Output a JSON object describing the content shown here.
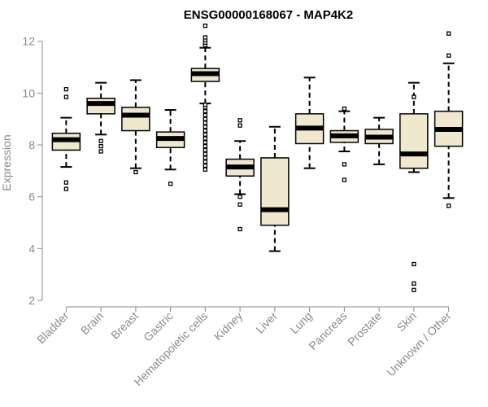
{
  "chart_data": {
    "type": "box",
    "title": "ENSG00000168067 - MAP4K2",
    "xlabel": "",
    "ylabel": "Expression",
    "ylim": [
      2,
      12.4
    ],
    "yticks": [
      2,
      4,
      6,
      8,
      10,
      12
    ],
    "categories": [
      "Bladder",
      "Brain",
      "Breast",
      "Gastric",
      "Hematopoietic cells",
      "Kidney",
      "Liver",
      "Lung",
      "Pancreas",
      "Prostate",
      "Skin",
      "Unknown / Other"
    ],
    "boxes": [
      {
        "category": "Bladder",
        "whisker_low": 7.15,
        "q1": 7.8,
        "median": 8.2,
        "q3": 8.45,
        "whisker_high": 9.05,
        "outliers": [
          6.3,
          6.55,
          9.85,
          10.15
        ]
      },
      {
        "category": "Brain",
        "whisker_low": 8.4,
        "q1": 9.2,
        "median": 9.6,
        "q3": 9.8,
        "whisker_high": 10.4,
        "outliers": [
          7.75,
          7.95,
          8.15
        ]
      },
      {
        "category": "Breast",
        "whisker_low": 7.1,
        "q1": 8.55,
        "median": 9.15,
        "q3": 9.45,
        "whisker_high": 10.5,
        "outliers": [
          6.95
        ]
      },
      {
        "category": "Gastric",
        "whisker_low": 7.05,
        "q1": 7.9,
        "median": 8.25,
        "q3": 8.5,
        "whisker_high": 9.35,
        "outliers": [
          6.5
        ]
      },
      {
        "category": "Hematopoietic cells",
        "whisker_low": 9.6,
        "q1": 10.45,
        "median": 10.75,
        "q3": 10.95,
        "whisker_high": 11.75,
        "outliers": [
          7.05,
          7.2,
          7.35,
          7.5,
          7.65,
          7.8,
          7.95,
          8.1,
          8.25,
          8.4,
          8.55,
          8.7,
          8.85,
          9.0,
          9.15,
          9.3,
          9.45,
          9.55,
          11.85,
          11.95,
          12.05,
          12.15,
          12.6
        ]
      },
      {
        "category": "Kidney",
        "whisker_low": 6.1,
        "q1": 6.8,
        "median": 7.15,
        "q3": 7.45,
        "whisker_high": 8.15,
        "outliers": [
          4.75,
          5.7,
          6.0,
          8.75,
          8.95
        ]
      },
      {
        "category": "Liver",
        "whisker_low": 3.9,
        "q1": 4.9,
        "median": 5.5,
        "q3": 7.5,
        "whisker_high": 8.7,
        "outliers": []
      },
      {
        "category": "Lung",
        "whisker_low": 7.1,
        "q1": 8.05,
        "median": 8.65,
        "q3": 9.2,
        "whisker_high": 10.6,
        "outliers": []
      },
      {
        "category": "Pancreas",
        "whisker_low": 7.75,
        "q1": 8.1,
        "median": 8.35,
        "q3": 8.55,
        "whisker_high": 9.3,
        "outliers": [
          6.65,
          7.25,
          9.4
        ]
      },
      {
        "category": "Prostate",
        "whisker_low": 7.25,
        "q1": 8.05,
        "median": 8.3,
        "q3": 8.6,
        "whisker_high": 9.05,
        "outliers": []
      },
      {
        "category": "Skin",
        "whisker_low": 6.95,
        "q1": 7.1,
        "median": 7.65,
        "q3": 9.2,
        "whisker_high": 10.4,
        "outliers": [
          2.4,
          2.65,
          3.4,
          9.85
        ]
      },
      {
        "category": "Unknown / Other",
        "whisker_low": 5.95,
        "q1": 7.95,
        "median": 8.6,
        "q3": 9.3,
        "whisker_high": 11.15,
        "outliers": [
          5.65,
          11.45,
          12.3
        ]
      }
    ],
    "box_fill": "#efe8cf",
    "grid": false,
    "legend": "none"
  }
}
